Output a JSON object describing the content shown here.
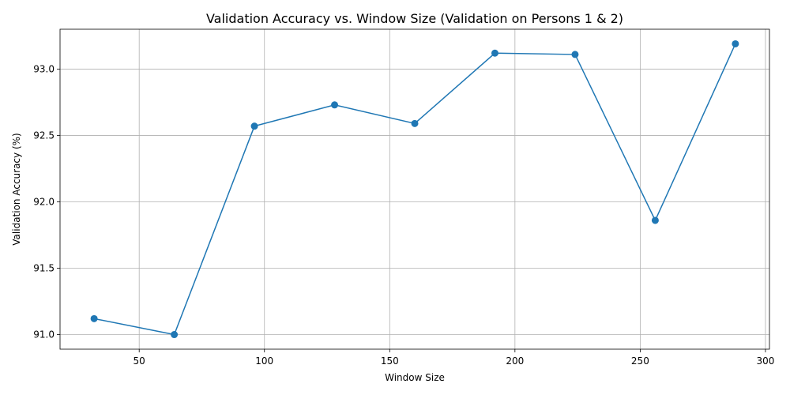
{
  "chart_data": {
    "type": "line",
    "title": "Validation Accuracy vs. Window Size (Validation on Persons 1 & 2)",
    "xlabel": "Window Size",
    "ylabel": "Validation Accuracy (%)",
    "x": [
      32,
      64,
      96,
      128,
      160,
      192,
      224,
      256,
      288
    ],
    "series": [
      {
        "values": [
          91.12,
          91.0,
          92.57,
          92.73,
          92.59,
          93.12,
          93.11,
          91.86,
          93.19
        ],
        "color": "#1f77b4"
      }
    ],
    "xlim": [
      18.4,
      301.6
    ],
    "ylim": [
      90.89,
      93.3
    ],
    "xticks": [
      50,
      100,
      150,
      200,
      250,
      300
    ],
    "xtick_labels": [
      "50",
      "100",
      "150",
      "200",
      "250",
      "300"
    ],
    "yticks": [
      91.0,
      91.5,
      92.0,
      92.5,
      93.0
    ],
    "ytick_labels": [
      "91.0",
      "91.5",
      "92.0",
      "92.5",
      "93.0"
    ],
    "grid": true,
    "markers": true
  }
}
